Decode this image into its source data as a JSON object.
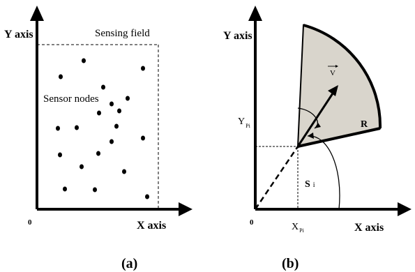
{
  "panel_a": {
    "caption": "(a)",
    "y_axis_label": "Y axis",
    "x_axis_label": "X axis",
    "origin_label": "0",
    "field_label": "Sensing field",
    "nodes_label": "Sensor nodes"
  },
  "panel_b": {
    "caption": "(b)",
    "y_axis_label": "Y axis",
    "x_axis_label": "X axis",
    "origin_label": "0",
    "vector_label": "V",
    "range_label": "R",
    "y_coord_main": "Y",
    "y_coord_sub": "Pi",
    "x_coord_main": "X",
    "x_coord_sub": "Pi",
    "sensor_label_main": "S",
    "sensor_label_sub": "i"
  },
  "colors": {
    "ink": "#000000",
    "sector_fill": "#d9d5cc"
  }
}
